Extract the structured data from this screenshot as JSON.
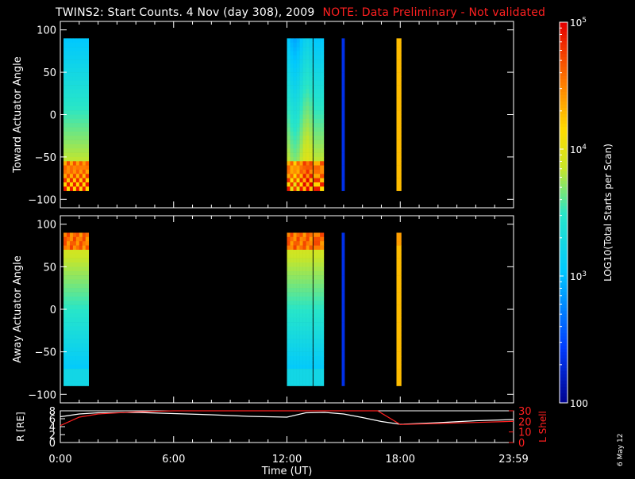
{
  "figure": {
    "title": "TWINS2: Start Counts.  4 Nov (day 308), 2009",
    "note": "NOTE: Data Preliminary - Not validated",
    "note_color": "#ff2020",
    "date_stamp": "6 May 12"
  },
  "chart_data": [
    {
      "type": "heatmap",
      "panel": "top",
      "ylabel": "Toward Actuator Angle",
      "ylim": [
        -110,
        110
      ],
      "yticks": [
        100,
        50,
        0,
        -50,
        -100
      ],
      "data_yrange": [
        -90,
        90
      ],
      "time_blocks_hours": [
        [
          0.17,
          1.5
        ],
        [
          12.0,
          13.35
        ],
        [
          13.4,
          13.55
        ],
        [
          13.55,
          13.95
        ],
        [
          14.9,
          15.05
        ],
        [
          17.8,
          18.05
        ]
      ],
      "colormap_description": "blue/cyan at top of angle range grading to yellow/orange near -60, noisy red/yellow near -80"
    },
    {
      "type": "heatmap",
      "panel": "middle",
      "ylabel": "Away Actuator Angle",
      "ylim": [
        -110,
        110
      ],
      "yticks": [
        100,
        50,
        0,
        -50,
        -100
      ],
      "data_yrange": [
        -90,
        90
      ],
      "time_blocks_hours": [
        [
          0.17,
          1.5
        ],
        [
          12.0,
          13.35
        ],
        [
          13.4,
          13.55
        ],
        [
          13.55,
          13.95
        ],
        [
          14.9,
          15.05
        ],
        [
          17.8,
          18.05
        ]
      ],
      "colormap_description": "orange/red near +85 grading to cyan/blue toward -80"
    },
    {
      "type": "line",
      "panel": "bottom",
      "xlabel": "Time (UT)",
      "xticks": [
        "0:00",
        "6:00",
        "12:00",
        "18:00",
        "23:59"
      ],
      "xlim_hours": [
        0,
        24
      ],
      "series": [
        {
          "name": "R [RE]",
          "axis": "left",
          "color": "#ffffff",
          "ylim": [
            0,
            8
          ],
          "yticks": [
            "0",
            "2",
            "4",
            "6",
            "8"
          ],
          "x": [
            0,
            1,
            2,
            4,
            6,
            8,
            10,
            12,
            13,
            14,
            15,
            16,
            17,
            18,
            20,
            22,
            24
          ],
          "y": [
            6.5,
            7.2,
            7.5,
            7.6,
            7.3,
            7.0,
            6.6,
            6.4,
            7.5,
            7.6,
            7.2,
            6.3,
            5.3,
            4.6,
            5.0,
            5.5,
            5.8
          ]
        },
        {
          "name": "L Shell",
          "axis": "right",
          "color": "#ff2020",
          "ylim": [
            0,
            30
          ],
          "yticks": [
            "0",
            "10",
            "20",
            "30"
          ],
          "x": [
            0,
            1,
            2,
            4,
            6,
            8,
            8.5,
            16.8,
            18,
            20,
            22,
            24
          ],
          "y": [
            16,
            24,
            27,
            29,
            30,
            30,
            30,
            30,
            17,
            18,
            19,
            20
          ]
        }
      ],
      "ylabel_left": "R [RE]",
      "ylabel_right": "L Shell"
    }
  ],
  "colorbar": {
    "label": "LOG10(Total Starts per Scan)",
    "ticks": [
      "10^5",
      "10^4",
      "10^3",
      "100"
    ],
    "range_log10": [
      2,
      5
    ]
  }
}
